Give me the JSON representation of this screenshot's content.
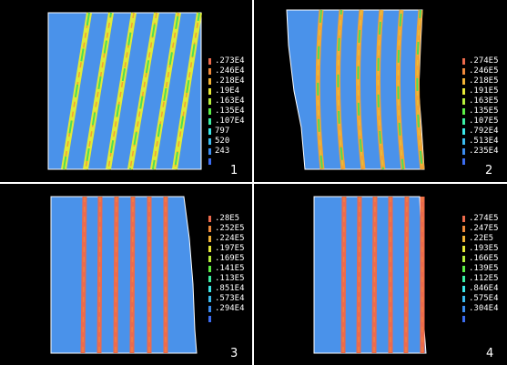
{
  "colors": {
    "background": "#000000",
    "divider": "#ffffff",
    "body_blue": "#4a92ea",
    "band_red": "#ec6a4c"
  },
  "legend_colors": [
    "#ec6a4c",
    "#f08a3c",
    "#f3b436",
    "#e8ea38",
    "#b8f03c",
    "#5df046",
    "#3cf0a6",
    "#3ce8ea",
    "#3cbcf0",
    "#3c8cf0"
  ],
  "panels": [
    {
      "number": "1",
      "legend": [
        ".273E4",
        ".246E4",
        ".218E4",
        ".19E4",
        ".163E4",
        ".135E4",
        ".107E4",
        "797",
        "520",
        "243"
      ],
      "band_color": "#e0ea38",
      "band_edge": "#f3a036",
      "band_alt": "#4ade5a"
    },
    {
      "number": "2",
      "legend": [
        ".274E5",
        ".246E5",
        ".218E5",
        ".191E5",
        ".163E5",
        ".135E5",
        ".107E5",
        ".792E4",
        ".513E4",
        ".235E4"
      ],
      "band_color": "#f0a436",
      "band_edge": "#e6c03a",
      "band_alt": "#4ade5a"
    },
    {
      "number": "3",
      "legend": [
        ".28E5",
        ".252E5",
        ".224E5",
        ".197E5",
        ".169E5",
        ".141E5",
        ".113E5",
        ".851E4",
        ".573E4",
        ".294E4"
      ],
      "band_color": "#ec6a4c",
      "band_edge": "#f08040",
      "band_alt": "#ec6a4c"
    },
    {
      "number": "4",
      "legend": [
        ".274E5",
        ".247E5",
        ".22E5",
        ".193E5",
        ".166E5",
        ".139E5",
        ".112E5",
        ".846E4",
        ".575E4",
        ".304E4"
      ],
      "band_color": "#ec6a4c",
      "band_edge": "#f08040",
      "band_alt": "#ec6a4c"
    }
  ]
}
